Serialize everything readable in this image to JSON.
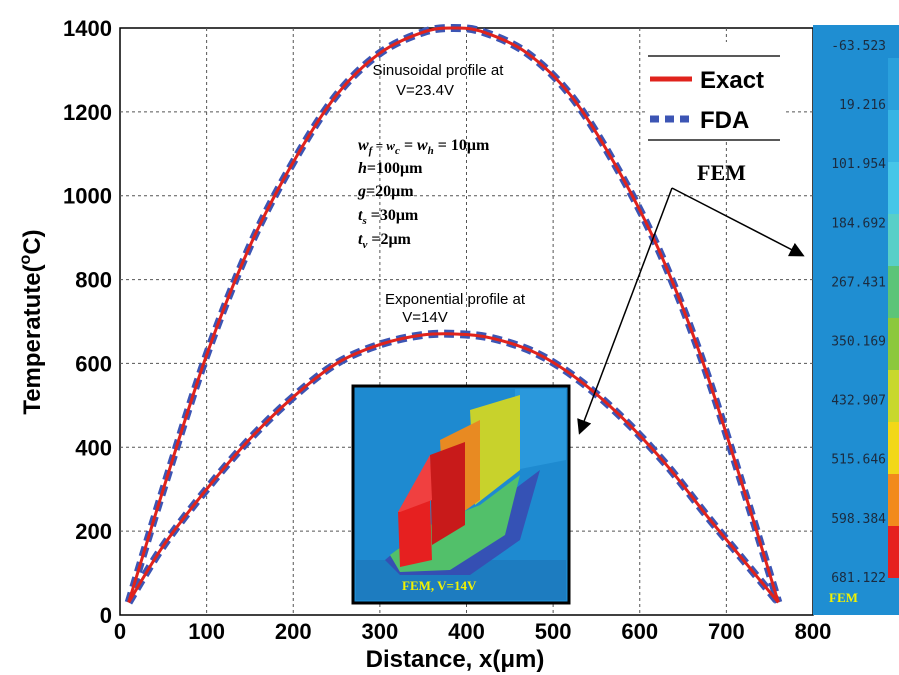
{
  "chart_data": {
    "type": "line",
    "title": "",
    "xlabel": "Distance, x(μm)",
    "ylabel_prefix": "Temperatute(",
    "ylabel_sup": "o",
    "ylabel_suffix": "C)",
    "xlim": [
      0,
      800
    ],
    "ylim": [
      0,
      1400
    ],
    "xticks": [
      0,
      100,
      200,
      300,
      400,
      500,
      600,
      700,
      800
    ],
    "yticks": [
      0,
      200,
      400,
      600,
      800,
      1000,
      1200,
      1400
    ],
    "grid": true,
    "legend_position": "top-right",
    "series": [
      {
        "name": "Exact",
        "profile": "Sinusoidal",
        "x": [
          10,
          50,
          100,
          150,
          200,
          250,
          300,
          350,
          385,
          420,
          470,
          520,
          570,
          620,
          670,
          720,
          760
        ],
        "y": [
          30,
          300,
          620,
          880,
          1080,
          1240,
          1340,
          1390,
          1400,
          1390,
          1340,
          1240,
          1080,
          880,
          620,
          300,
          30
        ]
      },
      {
        "name": "FDA",
        "profile": "Sinusoidal",
        "x": [
          10,
          50,
          100,
          150,
          200,
          250,
          300,
          350,
          385,
          420,
          470,
          520,
          570,
          620,
          670,
          720,
          760
        ],
        "y": [
          30,
          300,
          620,
          880,
          1080,
          1240,
          1340,
          1390,
          1400,
          1390,
          1340,
          1240,
          1080,
          880,
          620,
          300,
          30
        ]
      },
      {
        "name": "Exact",
        "profile": "Exponential",
        "x": [
          10,
          50,
          100,
          150,
          200,
          250,
          300,
          350,
          390,
          430,
          480,
          530,
          580,
          630,
          680,
          720,
          760
        ],
        "y": [
          30,
          165,
          300,
          420,
          520,
          600,
          645,
          668,
          670,
          660,
          625,
          560,
          470,
          360,
          230,
          130,
          30
        ]
      },
      {
        "name": "FDA",
        "profile": "Exponential",
        "x": [
          10,
          50,
          100,
          150,
          200,
          250,
          300,
          350,
          390,
          430,
          480,
          530,
          580,
          630,
          680,
          720,
          760
        ],
        "y": [
          30,
          165,
          300,
          420,
          520,
          600,
          645,
          668,
          670,
          660,
          625,
          560,
          470,
          360,
          230,
          130,
          30
        ]
      }
    ],
    "annotations": {
      "sin_line1": "Sinusoidal profile at",
      "sin_line2": "V=23.4V",
      "exp_line1": "Exponential profile at",
      "exp_line2": "V=14V",
      "params": [
        {
          "main": "w",
          "sub": "f",
          "rest": " = w",
          "sub2": "c",
          "rest2": " = w",
          "sub3": "h",
          "tail": " = 10μm"
        },
        {
          "main": "h",
          "tail": "=100μm"
        },
        {
          "main": "g",
          "tail": "=20μm"
        },
        {
          "main": "t",
          "sub": "s",
          "tail": " =30μm"
        },
        {
          "main": "t",
          "sub": "v",
          "tail": " =2μm"
        }
      ],
      "fem_label": "FEM",
      "inset_label": "FEM,  V=14V"
    },
    "colorbar": {
      "labels": [
        "-63.523",
        "19.216",
        "101.954",
        "184.692",
        "267.431",
        "350.169",
        "432.907",
        "515.646",
        "598.384",
        "681.122"
      ],
      "footer": "FEM",
      "colors": [
        "#2aa0dc",
        "#36b4e4",
        "#46c6e8",
        "#58cfc8",
        "#5cc478",
        "#8cc83c",
        "#c8d82c",
        "#f2d818",
        "#f28a1c",
        "#e6201e"
      ]
    },
    "colors": {
      "exact": "#e0231c",
      "fda": "#3c55b4"
    }
  }
}
